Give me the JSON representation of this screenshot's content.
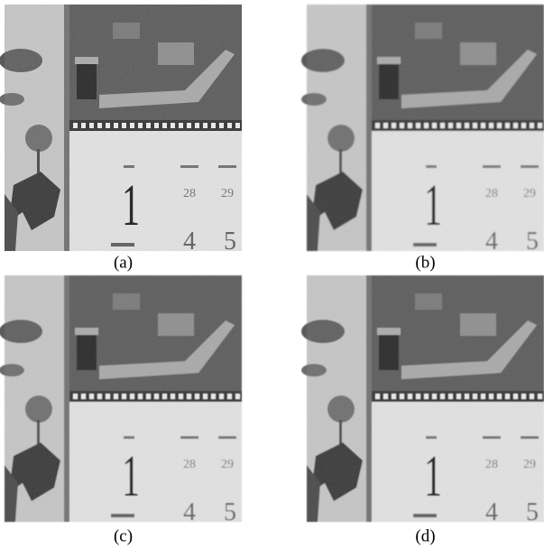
{
  "panels": [
    {
      "label": "(a)"
    },
    {
      "label": "(b)"
    },
    {
      "label": "(c)"
    },
    {
      "label": "(d)"
    }
  ],
  "calendar": {
    "day": "1",
    "dates_top": [
      "28",
      "29"
    ],
    "dates_bottom": [
      "4",
      "5"
    ]
  }
}
